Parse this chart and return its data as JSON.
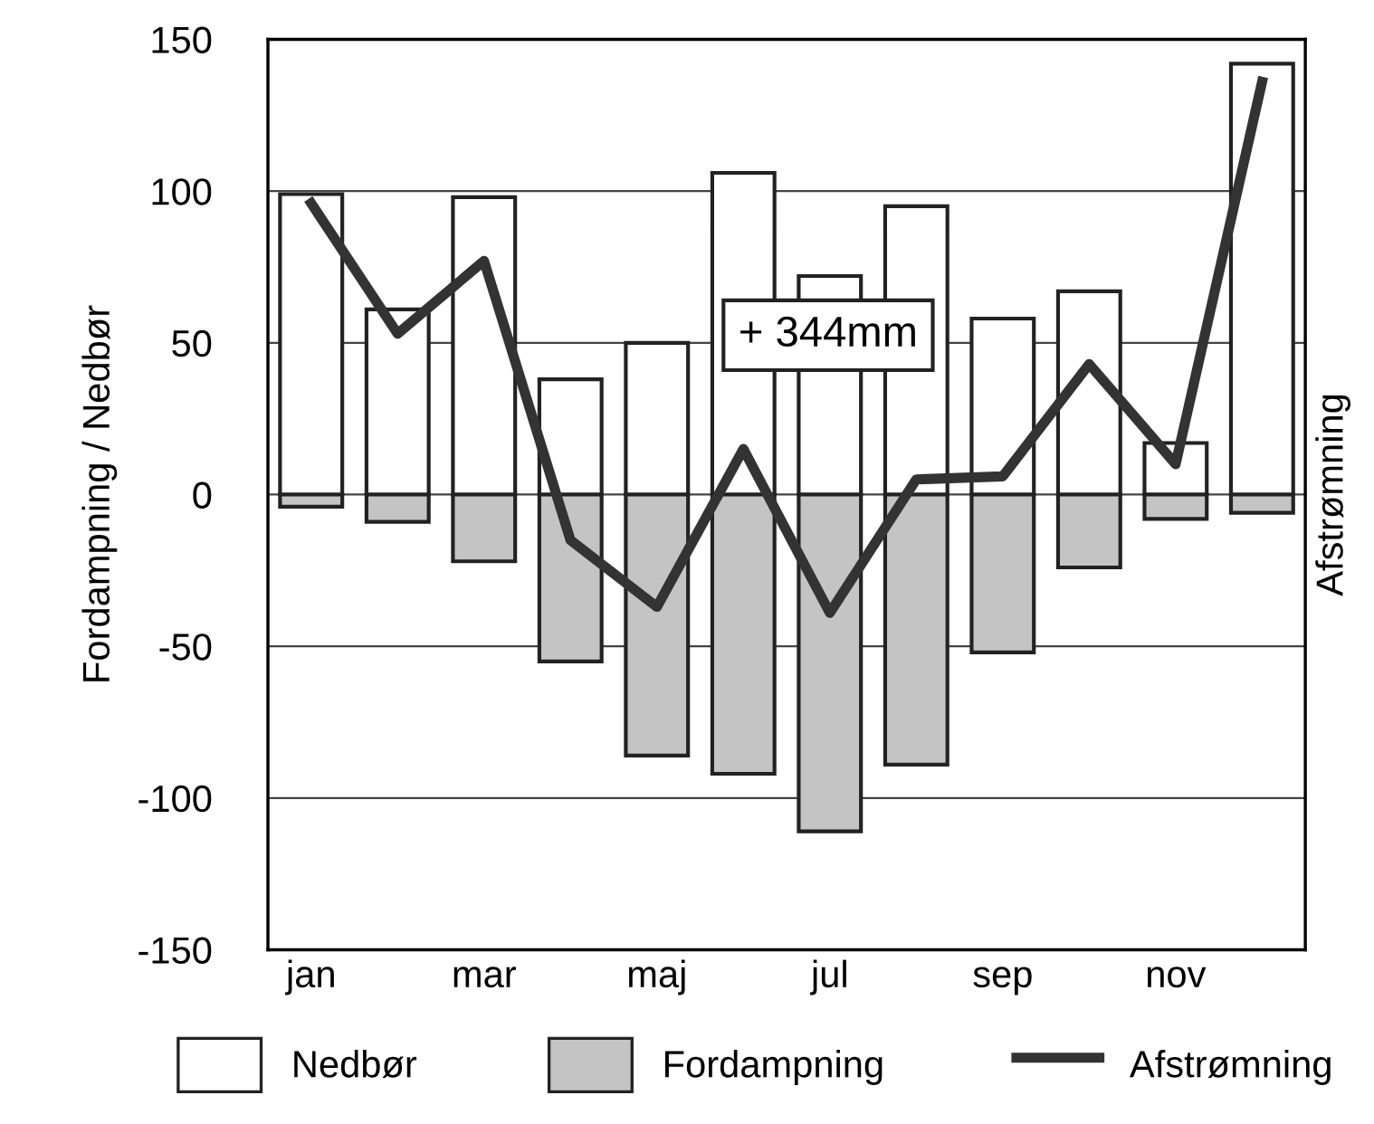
{
  "chart_data": {
    "type": "bar",
    "ylabel": "Fordampning / Nedbør",
    "y2label": "Afstrømning",
    "categories": [
      "jan",
      null,
      "mar",
      null,
      "maj",
      null,
      "jul",
      null,
      "sep",
      null,
      "nov",
      null
    ],
    "series": [
      {
        "name": "Nedbør",
        "color": "#ffffff",
        "values": [
          99,
          61,
          98,
          38,
          50,
          106,
          72,
          95,
          58,
          67,
          17,
          142
        ]
      },
      {
        "name": "Fordampning",
        "color": "#c4c4c4",
        "values": [
          -4,
          -9,
          -22,
          -55,
          -86,
          -92,
          -111,
          -89,
          -52,
          -24,
          -8,
          -6
        ]
      },
      {
        "name": "Afstrømning",
        "type": "line",
        "color": "#333333",
        "values": [
          96,
          53,
          77,
          -15,
          -37,
          15,
          -39,
          5,
          6,
          43,
          10,
          136
        ]
      }
    ],
    "ylim": [
      -150,
      150
    ],
    "yticks": [
      -150,
      -100,
      -50,
      0,
      50,
      100,
      150
    ],
    "stacked": true,
    "grid": "y",
    "legend": "bottom",
    "marker": "none",
    "line_style": "solid",
    "annotations": [
      "+ 344mm"
    ]
  }
}
